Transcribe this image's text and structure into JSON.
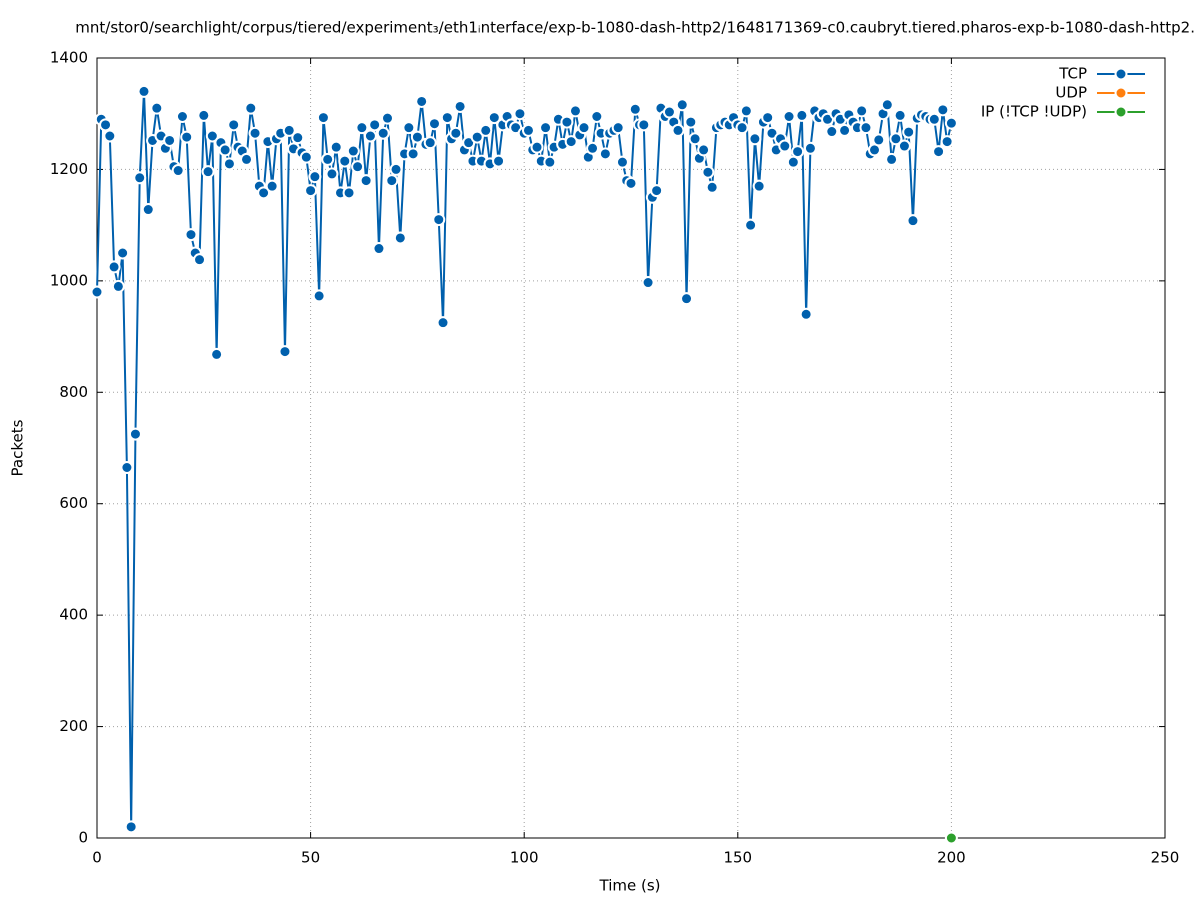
{
  "chart_data": {
    "type": "line",
    "title": "mnt/stor0/searchlight/corpus/tiered/experiment₃/eth1ᵢnterface/exp-b-1080-dash-http2/1648171369-c0.caubryt.tiered.pharos-exp-b-1080-dash-http2.",
    "x_label": "Time (s)",
    "y_label": "Packets",
    "xlim": [
      0,
      250
    ],
    "xticks": [
      0,
      50,
      100,
      150,
      200,
      250
    ],
    "ylim": [
      0,
      1400
    ],
    "yticks": [
      0,
      200,
      400,
      600,
      800,
      1000,
      1200,
      1400
    ],
    "grid": true,
    "legend": "top-right",
    "series": [
      {
        "name": "TCP",
        "color": "#0060ad",
        "x": [
          0,
          1,
          2,
          3,
          4,
          5,
          6,
          7,
          8,
          9,
          10,
          11,
          12,
          13,
          14,
          15,
          16,
          17,
          18,
          19,
          20,
          21,
          22,
          23,
          24,
          25,
          26,
          27,
          28,
          29,
          30,
          31,
          32,
          33,
          34,
          35,
          36,
          37,
          38,
          39,
          40,
          41,
          42,
          43,
          44,
          45,
          46,
          47,
          48,
          49,
          50,
          51,
          52,
          53,
          54,
          55,
          56,
          57,
          58,
          59,
          60,
          61,
          62,
          63,
          64,
          65,
          66,
          67,
          68,
          69,
          70,
          71,
          72,
          73,
          74,
          75,
          76,
          77,
          78,
          79,
          80,
          81,
          82,
          83,
          84,
          85,
          86,
          87,
          88,
          89,
          90,
          91,
          92,
          93,
          94,
          95,
          96,
          97,
          98,
          99,
          100,
          101,
          102,
          103,
          104,
          105,
          106,
          107,
          108,
          109,
          110,
          111,
          112,
          113,
          114,
          115,
          116,
          117,
          118,
          119,
          120,
          121,
          122,
          123,
          124,
          125,
          126,
          127,
          128,
          129,
          130,
          131,
          132,
          133,
          134,
          135,
          136,
          137,
          138,
          139,
          140,
          141,
          142,
          143,
          144,
          145,
          146,
          147,
          148,
          149,
          150,
          151,
          152,
          153,
          154,
          155,
          156,
          157,
          158,
          159,
          160,
          161,
          162,
          163,
          164,
          165,
          166,
          167,
          168,
          169,
          170,
          171,
          172,
          173,
          174,
          175,
          176,
          177,
          178,
          179,
          180,
          181,
          182,
          183,
          184,
          185,
          186,
          187,
          188,
          189,
          190,
          191,
          192,
          193,
          194,
          195,
          196,
          197,
          198,
          199,
          200
        ],
        "values": [
          980,
          1290,
          1280,
          1260,
          1025,
          990,
          1050,
          665,
          20,
          725,
          1185,
          1340,
          1128,
          1252,
          1310,
          1260,
          1238,
          1252,
          1205,
          1198,
          1295,
          1258,
          1083,
          1050,
          1038,
          1297,
          1196,
          1260,
          868,
          1248,
          1235,
          1210,
          1280,
          1240,
          1233,
          1218,
          1310,
          1265,
          1170,
          1158,
          1250,
          1170,
          1255,
          1265,
          873,
          1270,
          1237,
          1257,
          1230,
          1222,
          1162,
          1187,
          973,
          1293,
          1218,
          1192,
          1240,
          1158,
          1215,
          1158,
          1233,
          1205,
          1275,
          1180,
          1260,
          1280,
          1058,
          1265,
          1292,
          1180,
          1200,
          1077,
          1228,
          1275,
          1228,
          1258,
          1322,
          1245,
          1248,
          1282,
          1110,
          925,
          1293,
          1255,
          1265,
          1313,
          1235,
          1248,
          1215,
          1258,
          1215,
          1270,
          1210,
          1293,
          1215,
          1280,
          1295,
          1280,
          1275,
          1300,
          1265,
          1270,
          1235,
          1240,
          1215,
          1275,
          1213,
          1240,
          1290,
          1245,
          1285,
          1250,
          1305,
          1262,
          1275,
          1222,
          1238,
          1295,
          1265,
          1228,
          1265,
          1270,
          1275,
          1213,
          1180,
          1175,
          1308,
          1280,
          1280,
          997,
          1150,
          1162,
          1310,
          1295,
          1303,
          1285,
          1270,
          1316,
          968,
          1285,
          1255,
          1220,
          1235,
          1195,
          1168,
          1275,
          1280,
          1285,
          1280,
          1293,
          1280,
          1275,
          1305,
          1100,
          1255,
          1170,
          1285,
          1293,
          1265,
          1235,
          1255,
          1242,
          1295,
          1213,
          1232,
          1297,
          940,
          1238,
          1305,
          1293,
          1300,
          1290,
          1268,
          1300,
          1290,
          1270,
          1298,
          1285,
          1275,
          1305,
          1275,
          1228,
          1235,
          1253,
          1300,
          1316,
          1218,
          1255,
          1297,
          1242,
          1267,
          1108,
          1292,
          1298,
          1295,
          1290,
          1290,
          1232,
          1307,
          1250,
          1283
        ]
      },
      {
        "name": "UDP",
        "color": "#ff7f0e",
        "x": [],
        "values": []
      },
      {
        "name": "IP (!TCP  !UDP)",
        "color": "#2ca02c",
        "x": [
          200
        ],
        "values": [
          0
        ]
      }
    ]
  }
}
